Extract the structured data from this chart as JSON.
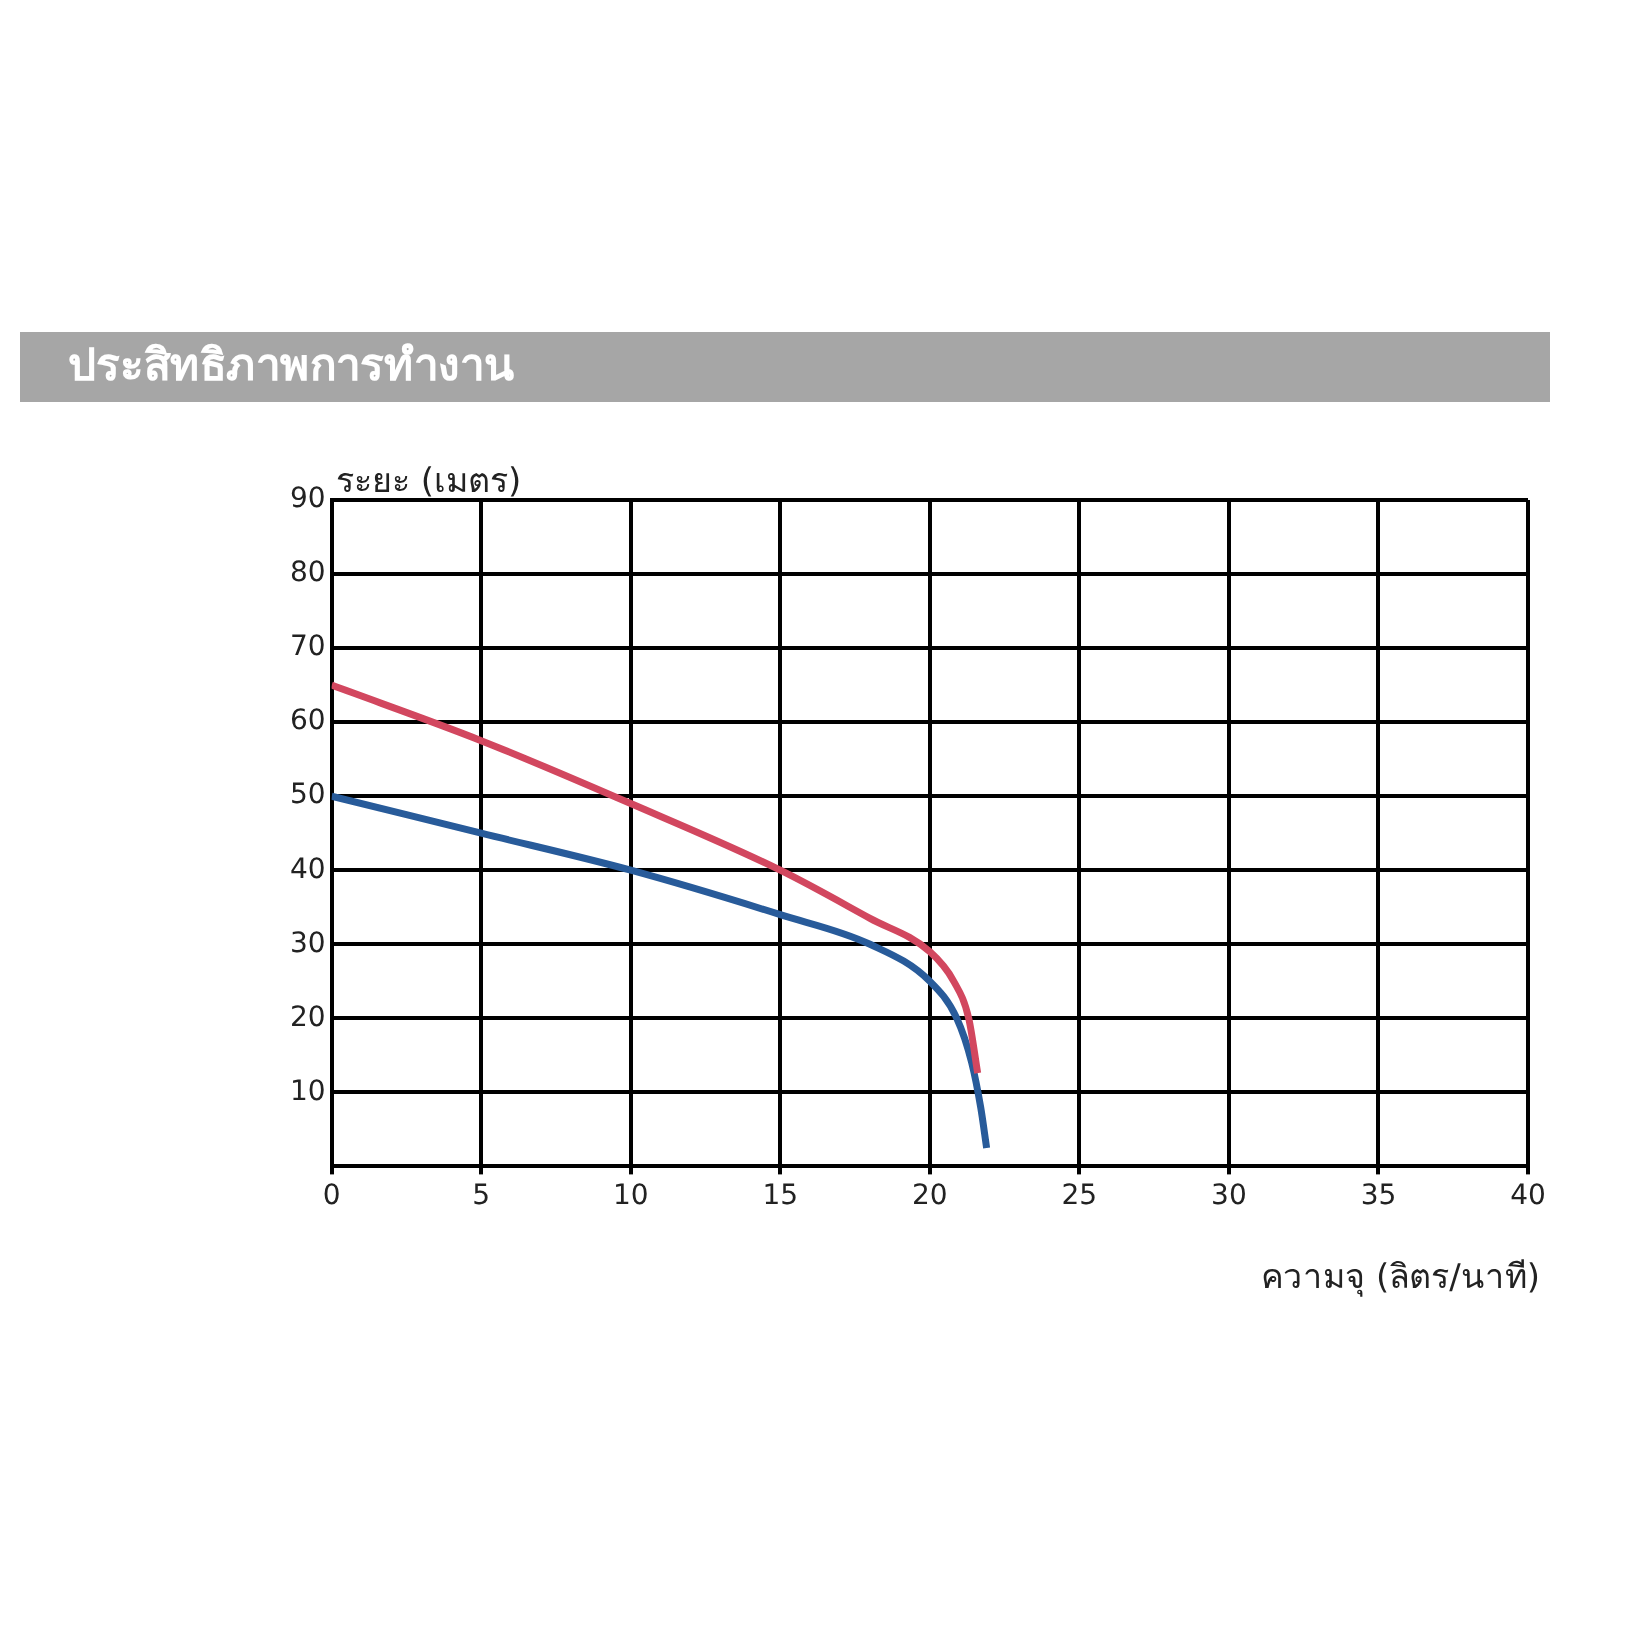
{
  "chart_data": {
    "type": "line",
    "title": "ประสิทธิภาพการทำงาน",
    "xlabel": "ความจุ (ลิตร/นาที)",
    "ylabel": "ระยะ (เมตร)",
    "xlim": [
      0,
      40
    ],
    "xticks": [
      0,
      5,
      10,
      15,
      20,
      25,
      30,
      35,
      40
    ],
    "ylim": [
      0,
      90
    ],
    "yticks": [
      {
        "value": 0,
        "label": null
      },
      10,
      20,
      30,
      40,
      50,
      60,
      70,
      80,
      90
    ],
    "grid": true,
    "legend": false,
    "marker": "none",
    "line_style": "solid",
    "series": [
      {
        "color": "#d2475f",
        "x": [
          0,
          5,
          10,
          15,
          18,
          20,
          20.8,
          21.3,
          21.6
        ],
        "values": [
          65,
          57.5,
          49,
          40,
          33.5,
          29,
          25,
          20,
          12.6
        ]
      },
      {
        "color": "#285b9a",
        "x": [
          0,
          5,
          10,
          15,
          18,
          20,
          20.9,
          21.4,
          21.7,
          21.9
        ],
        "values": [
          50,
          45,
          40,
          34,
          30,
          25,
          20,
          14,
          8,
          2.5
        ]
      }
    ]
  }
}
